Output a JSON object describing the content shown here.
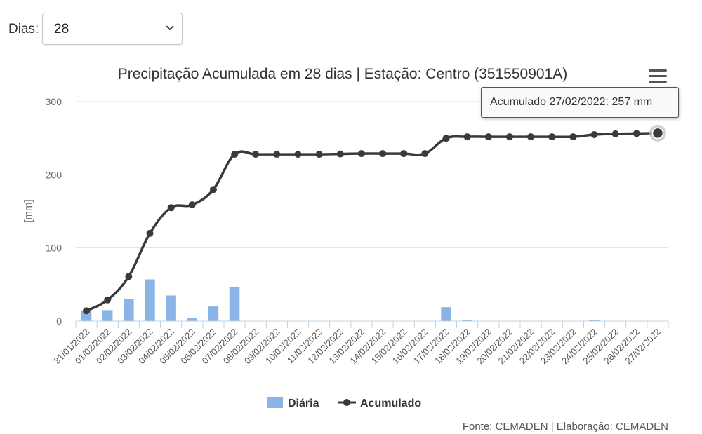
{
  "controls": {
    "dias_label": "Dias:",
    "dias_value": "28"
  },
  "tooltip": {
    "text": "Acumulado 27/02/2022: 257 mm"
  },
  "legend": {
    "bar_label": "Diária",
    "line_label": "Acumulado"
  },
  "credits": "Fonte: CEMADEN | Elaboração: CEMADEN",
  "colors": {
    "bar": "#8bb4e6",
    "line": "#3a3a3a",
    "grid": "#e0e0e0"
  },
  "icons": {
    "menu": "hamburger-menu-icon",
    "dropdown": "chevron-down-icon"
  },
  "chart_data": {
    "type": "bar+line",
    "title": "Precipitação Acumulada em 28 dias | Estação: Centro (351550901A)",
    "ylabel": "[mm]",
    "ylim": [
      0,
      300
    ],
    "yticks": [
      0,
      100,
      200,
      300
    ],
    "grid": true,
    "legend_position": "bottom-center",
    "categories": [
      "31/01/2022",
      "01/02/2022",
      "02/02/2022",
      "03/02/2022",
      "04/02/2022",
      "05/02/2022",
      "06/02/2022",
      "07/02/2022",
      "08/02/2022",
      "09/02/2022",
      "10/02/2022",
      "11/02/2022",
      "12/02/2022",
      "13/02/2022",
      "14/02/2022",
      "15/02/2022",
      "16/02/2022",
      "17/02/2022",
      "18/02/2022",
      "19/02/2022",
      "20/02/2022",
      "21/02/2022",
      "22/02/2022",
      "23/02/2022",
      "24/02/2022",
      "25/02/2022",
      "26/02/2022",
      "27/02/2022"
    ],
    "series": [
      {
        "name": "Diária",
        "type": "bar",
        "values": [
          14,
          15,
          30,
          57,
          35,
          4,
          20,
          47,
          0,
          0,
          0,
          0,
          0,
          0,
          0,
          0,
          0,
          19,
          1,
          0,
          0,
          0,
          0,
          0,
          1,
          0,
          0,
          0
        ]
      },
      {
        "name": "Acumulado",
        "type": "line",
        "values": [
          14,
          29,
          61,
          120,
          155,
          159,
          180,
          228,
          228,
          228,
          228,
          228,
          228.5,
          229,
          229,
          229,
          229,
          250,
          252,
          252,
          252,
          252,
          252,
          252,
          255,
          256,
          256.5,
          257
        ]
      }
    ]
  }
}
